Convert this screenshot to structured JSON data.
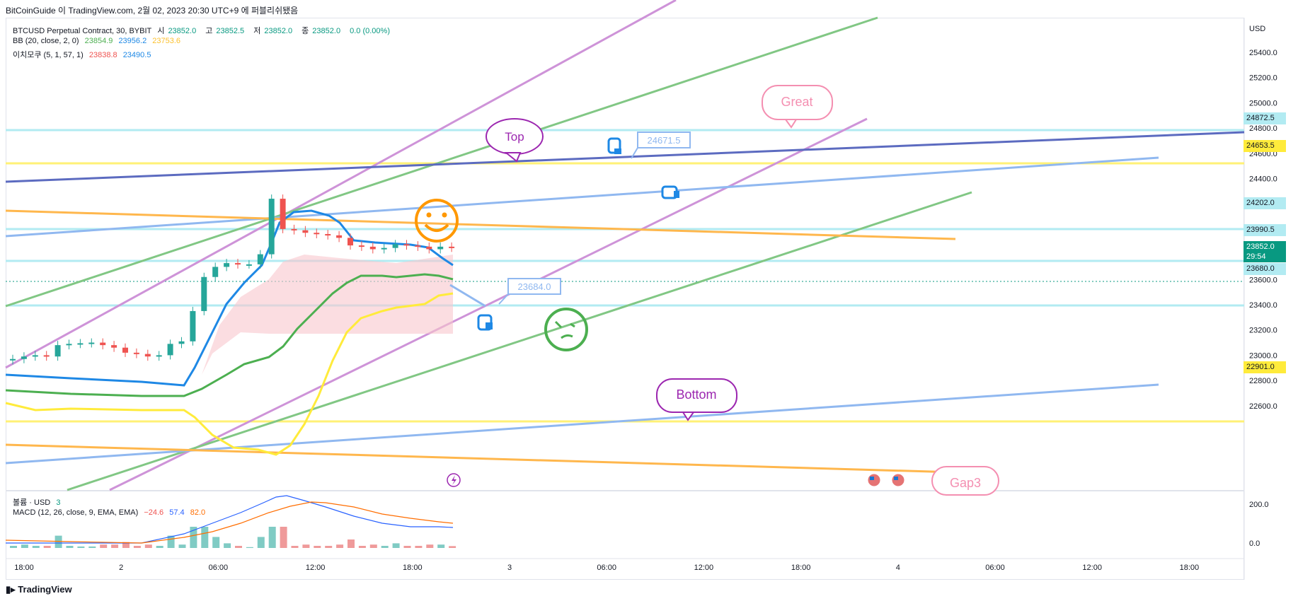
{
  "header": {
    "publish_line": "BitCoinGuide 이 TradingView.com, 2월 02, 2023 20:30 UTC+9 에 퍼블리쉬됐음"
  },
  "legend": {
    "symbol": "BTCUSD Perpetual Contract, 30, BYBIT",
    "o_label": "시",
    "o_val": "23852.0",
    "h_label": "고",
    "h_val": "23852.5",
    "l_label": "저",
    "l_val": "23852.0",
    "c_label": "종",
    "c_val": "23852.0",
    "chg": "0.0 (0.00%)",
    "bb_label": "BB (20, close, 2, 0)",
    "bb_basis": "23854.9",
    "bb_upper": "23956.2",
    "bb_lower": "23753.6",
    "ich_label": "이치모쿠 (5, 1, 57, 1)",
    "ich_a": "23838.8",
    "ich_b": "23490.5",
    "vol_label": "볼륨 · USD",
    "vol_val": "3",
    "macd_label": "MACD (12, 26, close, 9, EMA, EMA)",
    "macd_hist": "−24.6",
    "macd_line": "57.4",
    "macd_signal": "82.0"
  },
  "axis": {
    "currency": "USD",
    "y_ticks": [
      "25400.0",
      "25200.0",
      "25000.0",
      "24800.0",
      "24600.0",
      "24400.0",
      "23600.0",
      "23400.0",
      "23200.0",
      "23000.0",
      "22800.0",
      "22600.0"
    ],
    "macd_ticks": [
      "200.0",
      "0.0"
    ],
    "x_ticks": [
      "18:00",
      "2",
      "06:00",
      "12:00",
      "18:00",
      "3",
      "06:00",
      "12:00",
      "18:00",
      "4",
      "06:00",
      "12:00",
      "18:00"
    ]
  },
  "price_tags": [
    {
      "label": "24872.5",
      "color": "#b2ebf2"
    },
    {
      "label": "24653.5",
      "color": "#ffeb3b"
    },
    {
      "label": "24202.0",
      "color": "#b2ebf2"
    },
    {
      "label": "23990.5",
      "color": "#b2ebf2"
    },
    {
      "label": "23852.0",
      "sub": "29:54",
      "color": "#089981"
    },
    {
      "label": "23680.0",
      "color": "#b2ebf2"
    },
    {
      "label": "22901.0",
      "color": "#ffeb3b"
    }
  ],
  "annotations": {
    "top": "Top",
    "great": "Great",
    "bottom": "Bottom",
    "gap3": "Gap3",
    "price_callout_1": "24671.5",
    "price_callout_2": "23684.0"
  },
  "footer": {
    "brand": "TradingView"
  },
  "chart_data": {
    "type": "candlestick",
    "symbol": "BTCUSD",
    "timeframe": "30",
    "ylim": [
      22500,
      25550
    ],
    "last_price": 23852.0,
    "horizontal_levels": [
      24872.5,
      24653.5,
      24202.0,
      23990.5,
      23680.0,
      22901.0
    ],
    "candles_close": [
      22970,
      22990,
      23000,
      22990,
      23080,
      23090,
      23095,
      23100,
      23080,
      23060,
      23020,
      23010,
      22990,
      23000,
      23090,
      23110,
      23350,
      23620,
      23700,
      23730,
      23720,
      23720,
      23800,
      24240,
      24000,
      23990,
      23970,
      23960,
      23950,
      23930,
      23870,
      23860,
      23840,
      23850,
      23880,
      23870,
      23860,
      23840,
      23860,
      23852
    ]
  }
}
